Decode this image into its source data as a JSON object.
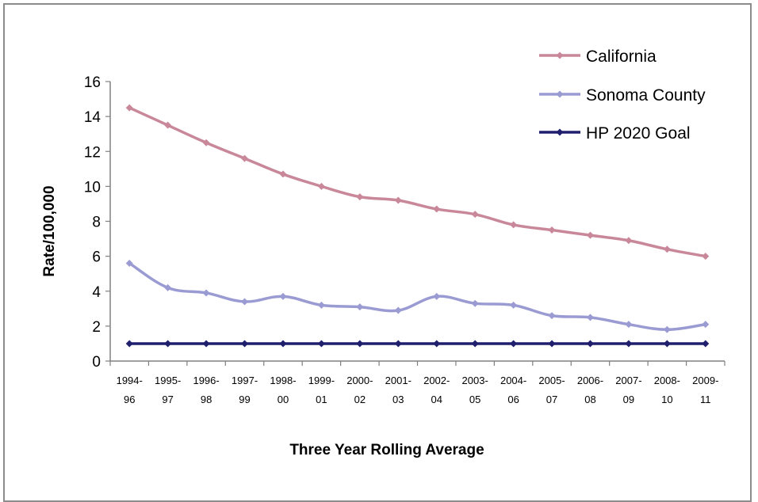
{
  "chart_data": {
    "type": "line",
    "xlabel": "Three Year Rolling Average",
    "ylabel": "Rate/100,000",
    "ylim": [
      0,
      16
    ],
    "yticks": [
      0,
      2,
      4,
      6,
      8,
      10,
      12,
      14,
      16
    ],
    "grid": false,
    "legend_position": "top-right",
    "categories": [
      [
        "1994-",
        "96"
      ],
      [
        "1995-",
        "97"
      ],
      [
        "1996-",
        "98"
      ],
      [
        "1997-",
        "99"
      ],
      [
        "1998-",
        "00"
      ],
      [
        "1999-",
        "01"
      ],
      [
        "2000-",
        "02"
      ],
      [
        "2001-",
        "03"
      ],
      [
        "2002-",
        "04"
      ],
      [
        "2003-",
        "05"
      ],
      [
        "2004-",
        "06"
      ],
      [
        "2005-",
        "07"
      ],
      [
        "2006-",
        "08"
      ],
      [
        "2007-",
        "09"
      ],
      [
        "2008-",
        "10"
      ],
      [
        "2009-",
        "11"
      ]
    ],
    "series": [
      {
        "name": "California",
        "color": "#c9879a",
        "values": [
          14.5,
          13.5,
          12.5,
          11.6,
          10.7,
          10.0,
          9.4,
          9.2,
          8.7,
          8.4,
          7.8,
          7.5,
          7.2,
          6.9,
          6.4,
          6.0
        ]
      },
      {
        "name": "Sonoma County",
        "color": "#9b9bd3",
        "values": [
          5.6,
          4.2,
          3.9,
          3.4,
          3.7,
          3.2,
          3.1,
          2.9,
          3.7,
          3.3,
          3.2,
          2.6,
          2.5,
          2.1,
          1.8,
          2.1
        ]
      },
      {
        "name": "HP 2020 Goal",
        "color": "#1f1f6e",
        "values": [
          1,
          1,
          1,
          1,
          1,
          1,
          1,
          1,
          1,
          1,
          1,
          1,
          1,
          1,
          1,
          1
        ]
      }
    ]
  }
}
